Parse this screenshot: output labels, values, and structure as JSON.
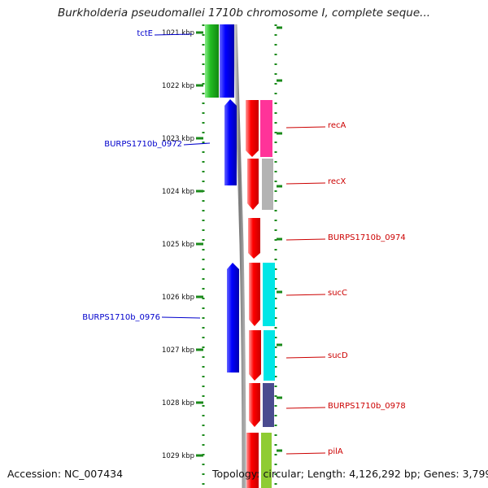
{
  "title": "Burkholderia pseudomallei 1710b chromosome I, complete seque...",
  "footer": {
    "accession": "Accession: NC_007434",
    "topology": "Topology: circular; Length: 4,126,292 bp; Genes: 3,799"
  },
  "ruler": {
    "unit": "kbp",
    "ticks": [
      1021,
      1022,
      1023,
      1024,
      1025,
      1026,
      1027,
      1028,
      1029
    ],
    "tick_labels": [
      "1021 kbp",
      "1022 kbp",
      "1023 kbp",
      "1024 kbp",
      "1025 kbp",
      "1026 kbp",
      "1027 kbp",
      "1028 kbp",
      "1029 kbp"
    ]
  },
  "genes_left": [
    {
      "name": "tctE",
      "color": "#0000cc"
    },
    {
      "name": "BURPS1710b_0972",
      "color": "#0000cc"
    },
    {
      "name": "BURPS1710b_0976",
      "color": "#0000cc"
    }
  ],
  "genes_right": [
    {
      "name": "recA",
      "color": "#cc0000"
    },
    {
      "name": "recX",
      "color": "#cc0000"
    },
    {
      "name": "BURPS1710b_0974",
      "color": "#cc0000"
    },
    {
      "name": "sucC",
      "color": "#cc0000"
    },
    {
      "name": "sucD",
      "color": "#cc0000"
    },
    {
      "name": "BURPS1710b_0978",
      "color": "#cc0000"
    },
    {
      "name": "pilA",
      "color": "#cc0000"
    }
  ],
  "colors": {
    "forward_strand": "#ff0000",
    "reverse_strand": "#0000ff",
    "backbone": "#888888",
    "dotted_ruler": "#1a8a1a",
    "gc_green": "#33cc33",
    "cog_pink": "#ff3399",
    "cog_gray": "#b3b3b3",
    "cog_cyan": "#00e6e6",
    "cog_navy": "#4b4b8f",
    "cog_lightgreen": "#8fcc33"
  }
}
